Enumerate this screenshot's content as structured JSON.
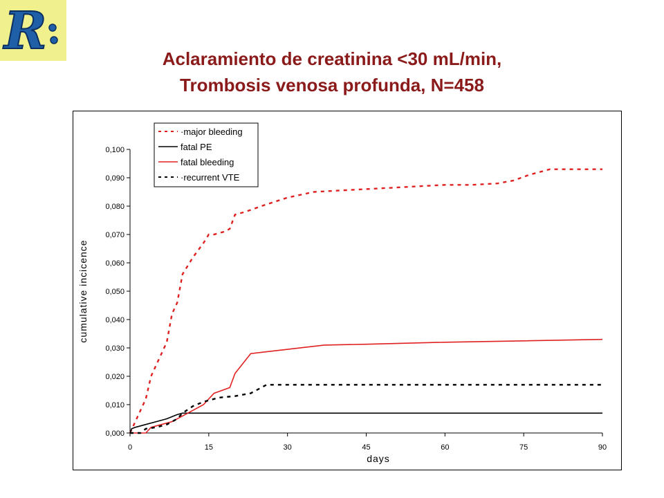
{
  "slide": {
    "title_line1": "Aclaramiento de creatinina <30 mL/min,",
    "title_line2": "Trombosis venosa profunda, N=458",
    "title_color": "#8b1a1a",
    "logo_letter": "R",
    "logo_bg": "#f0f08c",
    "logo_color": "#1f5fa8"
  },
  "chart_data": {
    "type": "line",
    "title": "",
    "xlabel": "days",
    "ylabel": "cumulative incicence",
    "xlim": [
      0,
      90
    ],
    "ylim": [
      0,
      0.1
    ],
    "xticks": [
      0,
      15,
      30,
      45,
      60,
      75,
      90
    ],
    "xtick_labels": [
      "0",
      "15",
      "30",
      "45",
      "60",
      "75",
      "90"
    ],
    "yticks": [
      0,
      0.01,
      0.02,
      0.03,
      0.04,
      0.05,
      0.06,
      0.07,
      0.08,
      0.09,
      0.1
    ],
    "ytick_labels": [
      "0,000",
      "0,010",
      "0,020",
      "0,030",
      "0,040",
      "0,050",
      "0,060",
      "0,070",
      "0,080",
      "0,090",
      "0,100"
    ],
    "grid": false,
    "legend_position": "top-left",
    "series": [
      {
        "name": "major bleeding",
        "color": "#e02020",
        "style": "dashed",
        "x": [
          0,
          0.5,
          1,
          2,
          3,
          4,
          5,
          6,
          7,
          8,
          9,
          10,
          11,
          12,
          14,
          15,
          16,
          18,
          19,
          20,
          22,
          25,
          30,
          35,
          40,
          45,
          50,
          55,
          60,
          65,
          70,
          73,
          76,
          78,
          80,
          85,
          90
        ],
        "y": [
          0,
          0.002,
          0.004,
          0.008,
          0.012,
          0.02,
          0.024,
          0.028,
          0.032,
          0.042,
          0.046,
          0.056,
          0.059,
          0.062,
          0.067,
          0.07,
          0.07,
          0.071,
          0.072,
          0.077,
          0.078,
          0.08,
          0.083,
          0.085,
          0.0855,
          0.086,
          0.0865,
          0.087,
          0.0875,
          0.0875,
          0.088,
          0.089,
          0.091,
          0.092,
          0.093,
          0.093,
          0.093
        ]
      },
      {
        "name": "fatal PE",
        "color": "#000000",
        "style": "solid",
        "x": [
          0,
          0.3,
          1,
          3,
          5,
          7,
          9,
          10,
          11,
          15,
          30,
          45,
          60,
          75,
          90
        ],
        "y": [
          0,
          0.0015,
          0.002,
          0.003,
          0.004,
          0.005,
          0.0065,
          0.007,
          0.007,
          0.007,
          0.007,
          0.007,
          0.007,
          0.007,
          0.007
        ]
      },
      {
        "name": "fatal bleeding",
        "color": "#e02020",
        "style": "solid",
        "x": [
          0,
          3,
          4,
          6,
          8,
          10,
          12,
          14,
          16,
          19,
          20,
          23,
          30,
          37,
          45,
          60,
          75,
          90
        ],
        "y": [
          0,
          0,
          0.002,
          0.003,
          0.004,
          0.006,
          0.008,
          0.01,
          0.014,
          0.016,
          0.021,
          0.028,
          0.0295,
          0.031,
          0.0313,
          0.032,
          0.0325,
          0.033
        ]
      },
      {
        "name": "recurrent VTE",
        "color": "#000000",
        "style": "dashed",
        "x": [
          0,
          2,
          3,
          5,
          7,
          9,
          10,
          12,
          14,
          17,
          20,
          23,
          25,
          26,
          30,
          45,
          60,
          75,
          90
        ],
        "y": [
          0,
          0,
          0.0015,
          0.002,
          0.003,
          0.005,
          0.007,
          0.0095,
          0.011,
          0.0125,
          0.013,
          0.014,
          0.016,
          0.017,
          0.017,
          0.017,
          0.017,
          0.017,
          0.017
        ]
      }
    ]
  }
}
